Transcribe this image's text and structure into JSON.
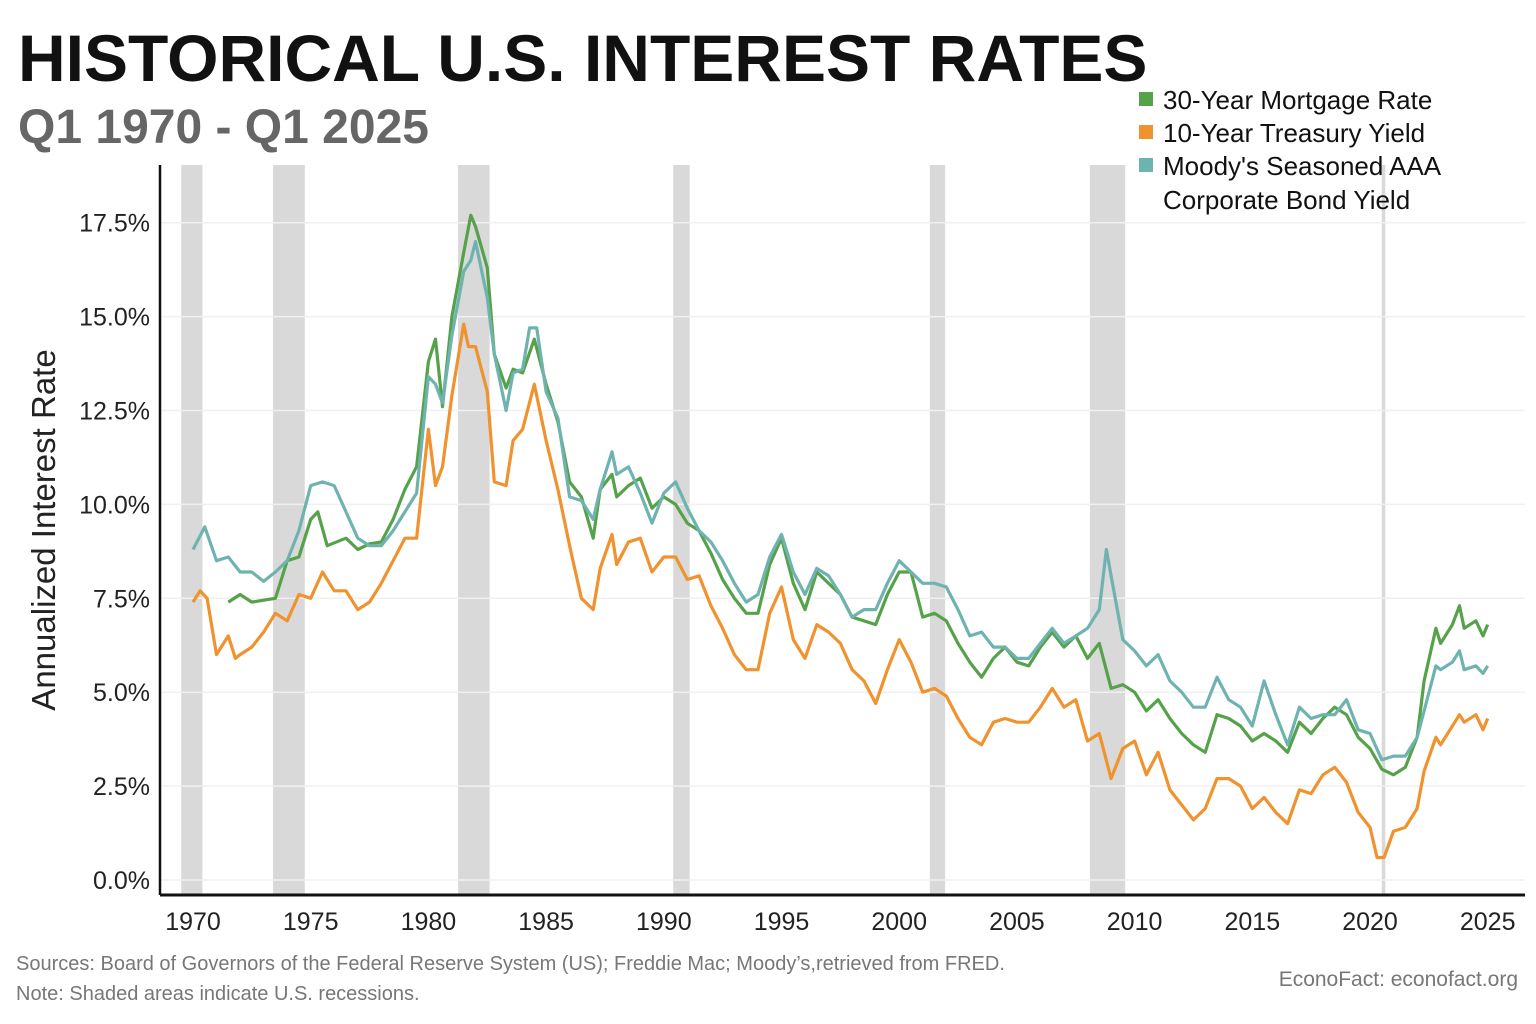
{
  "chart_data": {
    "type": "line",
    "title": "HISTORICAL U.S. INTEREST RATES",
    "subtitle": "Q1 1970 - Q1 2025",
    "ylabel": "Annualized Interest Rate",
    "xlabel": "",
    "xlim": [
      1969.2,
      2026.5
    ],
    "ylim": [
      0,
      18.5
    ],
    "yticks": [
      "0.0%",
      "2.5%",
      "5.0%",
      "7.5%",
      "10.0%",
      "12.5%",
      "15.0%",
      "17.5%"
    ],
    "ytick_values": [
      0,
      2.5,
      5,
      7.5,
      10,
      12.5,
      15,
      17.5
    ],
    "xticks": [
      "1970",
      "1975",
      "1980",
      "1985",
      "1990",
      "1995",
      "2000",
      "2005",
      "2010",
      "2015",
      "2020",
      "2025"
    ],
    "grid": "horizontal",
    "legend_placement": "top-right",
    "recessions": [
      [
        1969.5,
        1970.4
      ],
      [
        1973.4,
        1974.75
      ],
      [
        1981.26,
        1982.6
      ],
      [
        1990.4,
        1991.1
      ],
      [
        2001.3,
        2001.95
      ],
      [
        2008.1,
        2009.6
      ],
      [
        2020.5,
        2020.65
      ]
    ],
    "recession_color": "#d9d9d9",
    "series": [
      {
        "name": "30-Year Mortgage Rate",
        "color": "#55a24a",
        "x": [
          1971.5,
          1972,
          1972.5,
          1973,
          1973.5,
          1974,
          1974.5,
          1975,
          1975.3,
          1975.7,
          1976.5,
          1977,
          1977.5,
          1978,
          1978.5,
          1979,
          1979.5,
          1980,
          1980.3,
          1980.6,
          1981,
          1981.5,
          1981.8,
          1982,
          1982.5,
          1982.8,
          1983.3,
          1983.6,
          1984,
          1984.5,
          1985,
          1985.5,
          1986,
          1986.5,
          1987,
          1987.3,
          1987.8,
          1988,
          1988.5,
          1989,
          1989.5,
          1990,
          1990.5,
          1991,
          1991.5,
          1992,
          1992.5,
          1993,
          1993.5,
          1994,
          1994.5,
          1995,
          1995.5,
          1996,
          1996.5,
          1997,
          1997.5,
          1998,
          1998.5,
          1999,
          1999.5,
          2000,
          2000.5,
          2001,
          2001.5,
          2002,
          2002.5,
          2003,
          2003.5,
          2004,
          2004.5,
          2005,
          2005.5,
          2006,
          2006.5,
          2007,
          2007.5,
          2008,
          2008.5,
          2009,
          2009.5,
          2010,
          2010.5,
          2011,
          2011.5,
          2012,
          2012.5,
          2013,
          2013.5,
          2014,
          2014.5,
          2015,
          2015.5,
          2016,
          2016.5,
          2017,
          2017.5,
          2018,
          2018.5,
          2019,
          2019.5,
          2020,
          2020.5,
          2021,
          2021.5,
          2022,
          2022.3,
          2022.8,
          2023,
          2023.5,
          2023.8,
          2024,
          2024.5,
          2024.8,
          2025
        ],
        "values": [
          7.4,
          7.6,
          7.4,
          7.45,
          7.5,
          8.5,
          8.6,
          9.6,
          9.8,
          8.9,
          9.1,
          8.8,
          8.95,
          9.0,
          9.6,
          10.4,
          11.0,
          13.8,
          14.4,
          12.6,
          15.0,
          16.7,
          17.7,
          17.4,
          16.3,
          14.0,
          13.1,
          13.6,
          13.5,
          14.4,
          13.2,
          12.2,
          10.6,
          10.2,
          9.1,
          10.4,
          10.8,
          10.2,
          10.5,
          10.7,
          9.9,
          10.2,
          10.0,
          9.5,
          9.3,
          8.7,
          8.0,
          7.5,
          7.1,
          7.1,
          8.4,
          9.1,
          7.9,
          7.2,
          8.2,
          7.9,
          7.6,
          7.0,
          6.9,
          6.8,
          7.6,
          8.2,
          8.2,
          7.0,
          7.1,
          6.9,
          6.3,
          5.8,
          5.4,
          5.9,
          6.2,
          5.8,
          5.7,
          6.2,
          6.6,
          6.2,
          6.5,
          5.9,
          6.3,
          5.1,
          5.2,
          5.0,
          4.5,
          4.8,
          4.3,
          3.9,
          3.6,
          3.4,
          4.4,
          4.3,
          4.1,
          3.7,
          3.9,
          3.7,
          3.4,
          4.2,
          3.9,
          4.3,
          4.6,
          4.4,
          3.8,
          3.5,
          2.95,
          2.8,
          3.0,
          3.8,
          5.3,
          6.7,
          6.3,
          6.8,
          7.3,
          6.7,
          6.9,
          6.5,
          6.8
        ]
      },
      {
        "name": "10-Year Treasury Yield",
        "color": "#f0922e",
        "x": [
          1970,
          1970.3,
          1970.6,
          1971,
          1971.5,
          1971.8,
          1972,
          1972.5,
          1973,
          1973.5,
          1974,
          1974.5,
          1975,
          1975.5,
          1976,
          1976.5,
          1977,
          1977.5,
          1978,
          1978.5,
          1979,
          1979.5,
          1980,
          1980.3,
          1980.6,
          1981,
          1981.5,
          1981.7,
          1982,
          1982.5,
          1982.8,
          1983.3,
          1983.6,
          1984,
          1984.5,
          1985,
          1985.5,
          1986,
          1986.5,
          1987,
          1987.3,
          1987.8,
          1988,
          1988.5,
          1989,
          1989.5,
          1990,
          1990.5,
          1991,
          1991.5,
          1992,
          1992.5,
          1993,
          1993.5,
          1994,
          1994.5,
          1995,
          1995.5,
          1996,
          1996.5,
          1997,
          1997.5,
          1998,
          1998.5,
          1999,
          1999.5,
          2000,
          2000.5,
          2001,
          2001.5,
          2002,
          2002.5,
          2003,
          2003.5,
          2004,
          2004.5,
          2005,
          2005.5,
          2006,
          2006.5,
          2007,
          2007.5,
          2008,
          2008.5,
          2009,
          2009.5,
          2010,
          2010.5,
          2011,
          2011.5,
          2012,
          2012.5,
          2013,
          2013.5,
          2014,
          2014.5,
          2015,
          2015.5,
          2016,
          2016.5,
          2017,
          2017.5,
          2018,
          2018.5,
          2019,
          2019.5,
          2020,
          2020.3,
          2020.6,
          2021,
          2021.5,
          2022,
          2022.3,
          2022.8,
          2023,
          2023.5,
          2023.8,
          2024,
          2024.5,
          2024.8,
          2025
        ],
        "values": [
          7.4,
          7.7,
          7.5,
          6.0,
          6.5,
          5.9,
          6.0,
          6.2,
          6.6,
          7.1,
          6.9,
          7.6,
          7.5,
          8.2,
          7.7,
          7.7,
          7.2,
          7.4,
          7.9,
          8.5,
          9.1,
          9.1,
          12.0,
          10.5,
          11.0,
          12.9,
          14.8,
          14.2,
          14.2,
          13.0,
          10.6,
          10.5,
          11.7,
          12.0,
          13.2,
          11.7,
          10.4,
          8.9,
          7.5,
          7.2,
          8.3,
          9.2,
          8.4,
          9.0,
          9.1,
          8.2,
          8.6,
          8.6,
          8.0,
          8.1,
          7.3,
          6.7,
          6.0,
          5.6,
          5.6,
          7.1,
          7.8,
          6.4,
          5.9,
          6.8,
          6.6,
          6.3,
          5.6,
          5.3,
          4.7,
          5.6,
          6.4,
          5.8,
          5.0,
          5.1,
          4.9,
          4.3,
          3.8,
          3.6,
          4.2,
          4.3,
          4.2,
          4.2,
          4.6,
          5.1,
          4.6,
          4.8,
          3.7,
          3.9,
          2.7,
          3.5,
          3.7,
          2.8,
          3.4,
          2.4,
          2.0,
          1.6,
          1.9,
          2.7,
          2.7,
          2.5,
          1.9,
          2.2,
          1.8,
          1.5,
          2.4,
          2.3,
          2.8,
          3.0,
          2.6,
          1.8,
          1.4,
          0.6,
          0.6,
          1.3,
          1.4,
          1.9,
          2.9,
          3.8,
          3.6,
          4.1,
          4.4,
          4.2,
          4.4,
          4.0,
          4.3
        ]
      },
      {
        "name": "Moody's Seasoned AAA Corporate Bond Yield",
        "color": "#6fb3b0",
        "x": [
          1970,
          1970.5,
          1971,
          1971.5,
          1972,
          1972.5,
          1973,
          1973.5,
          1974,
          1974.5,
          1975,
          1975.5,
          1976,
          1976.5,
          1977,
          1977.5,
          1978,
          1978.5,
          1979,
          1979.5,
          1980,
          1980.3,
          1980.6,
          1981,
          1981.5,
          1981.8,
          1982,
          1982.5,
          1982.8,
          1983.3,
          1983.6,
          1984,
          1984.3,
          1984.6,
          1985,
          1985.5,
          1986,
          1986.5,
          1987,
          1987.3,
          1987.8,
          1988,
          1988.5,
          1989,
          1989.5,
          1990,
          1990.5,
          1991,
          1991.5,
          1992,
          1992.5,
          1993,
          1993.5,
          1994,
          1994.5,
          1995,
          1995.5,
          1996,
          1996.5,
          1997,
          1997.5,
          1998,
          1998.5,
          1999,
          1999.5,
          2000,
          2000.5,
          2001,
          2001.5,
          2002,
          2002.5,
          2003,
          2003.5,
          2004,
          2004.5,
          2005,
          2005.5,
          2006,
          2006.5,
          2007,
          2007.5,
          2008,
          2008.5,
          2008.8,
          2009,
          2009.5,
          2010,
          2010.5,
          2011,
          2011.5,
          2012,
          2012.5,
          2013,
          2013.5,
          2014,
          2014.5,
          2015,
          2015.5,
          2016,
          2016.5,
          2017,
          2017.5,
          2018,
          2018.5,
          2019,
          2019.5,
          2020,
          2020.5,
          2021,
          2021.5,
          2022,
          2022.3,
          2022.8,
          2023,
          2023.5,
          2023.8,
          2024,
          2024.5,
          2024.8,
          2025
        ],
        "values": [
          8.8,
          9.4,
          8.5,
          8.6,
          8.2,
          8.2,
          7.95,
          8.2,
          8.5,
          9.3,
          10.5,
          10.6,
          10.5,
          9.8,
          9.1,
          8.9,
          8.9,
          9.3,
          9.8,
          10.3,
          13.4,
          13.2,
          12.7,
          14.5,
          16.2,
          16.5,
          17.0,
          15.5,
          14.0,
          12.5,
          13.5,
          13.6,
          14.7,
          14.7,
          13.0,
          12.3,
          10.2,
          10.1,
          9.6,
          10.4,
          11.4,
          10.8,
          11.0,
          10.3,
          9.5,
          10.3,
          10.6,
          9.9,
          9.3,
          9.0,
          8.5,
          7.9,
          7.4,
          7.6,
          8.6,
          9.2,
          8.2,
          7.6,
          8.3,
          8.1,
          7.6,
          7.0,
          7.2,
          7.2,
          7.9,
          8.5,
          8.2,
          7.9,
          7.9,
          7.8,
          7.2,
          6.5,
          6.6,
          6.2,
          6.2,
          5.9,
          5.9,
          6.3,
          6.7,
          6.3,
          6.5,
          6.7,
          7.2,
          8.8,
          8.1,
          6.4,
          6.1,
          5.7,
          6.0,
          5.3,
          5.0,
          4.6,
          4.6,
          5.4,
          4.8,
          4.6,
          4.1,
          5.3,
          4.4,
          3.6,
          4.6,
          4.3,
          4.4,
          4.4,
          4.8,
          4.0,
          3.9,
          3.2,
          3.3,
          3.3,
          3.8,
          4.5,
          5.7,
          5.6,
          5.8,
          6.1,
          5.6,
          5.7,
          5.5,
          5.7
        ]
      }
    ]
  },
  "sources": "Sources: Board of Governors of the Federal Reserve System (US); Freddie Mac; Moody’s,retrieved from FRED.",
  "note": "Note: Shaded areas indicate U.S. recessions.",
  "brand": "EconoFact:   econofact.org",
  "legend": {
    "aaa_line1": "Moody's Seasoned AAA",
    "aaa_line2": "Corporate Bond Yield"
  }
}
